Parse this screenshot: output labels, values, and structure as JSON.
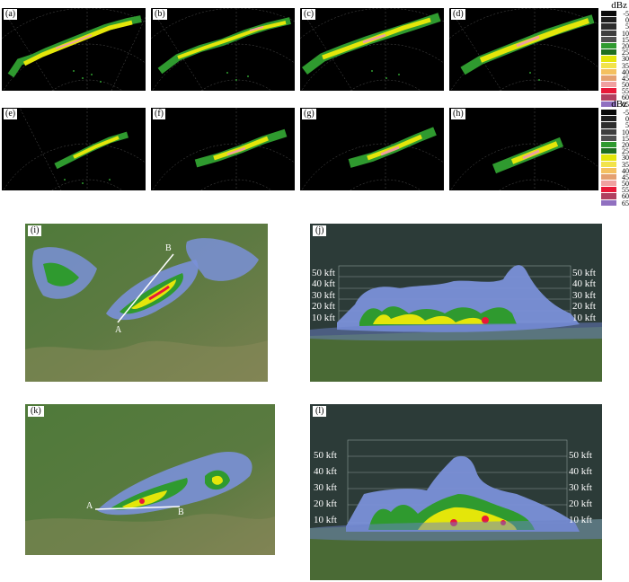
{
  "panels_top": [
    {
      "label": "(a)"
    },
    {
      "label": "(b)"
    },
    {
      "label": "(c)"
    },
    {
      "label": "(d)"
    },
    {
      "label": "(e)"
    },
    {
      "label": "(f)"
    },
    {
      "label": "(g)"
    },
    {
      "label": "(h)"
    }
  ],
  "legend": {
    "unit": "dBz",
    "levels": [
      "-5",
      "0",
      "5",
      "10",
      "15",
      "20",
      "25",
      "30",
      "35",
      "40",
      "45",
      "50",
      "55",
      "60",
      "65"
    ],
    "colors": [
      "#0a0a0a",
      "#1e1e1e",
      "#2e2e2e",
      "#3e3e3e",
      "#505050",
      "#2f9a2f",
      "#1f6f1f",
      "#e4e60a",
      "#f2e34a",
      "#f4c060",
      "#e4a070",
      "#f0a0a0",
      "#e81838",
      "#b04060",
      "#9070c0"
    ]
  },
  "geo_panels": [
    {
      "label": "(i)",
      "point_a": "A",
      "point_b": "B"
    },
    {
      "label": "(j)",
      "altitude_labels": [
        "50 kft",
        "40 kft",
        "30 kft",
        "20 kft",
        "10 kft"
      ]
    },
    {
      "label": "(k)",
      "point_a": "A",
      "point_b": "B"
    },
    {
      "label": "(l)",
      "altitude_labels": [
        "50 kft",
        "40 kft",
        "30 kft",
        "20 kft",
        "10 kft"
      ]
    }
  ]
}
